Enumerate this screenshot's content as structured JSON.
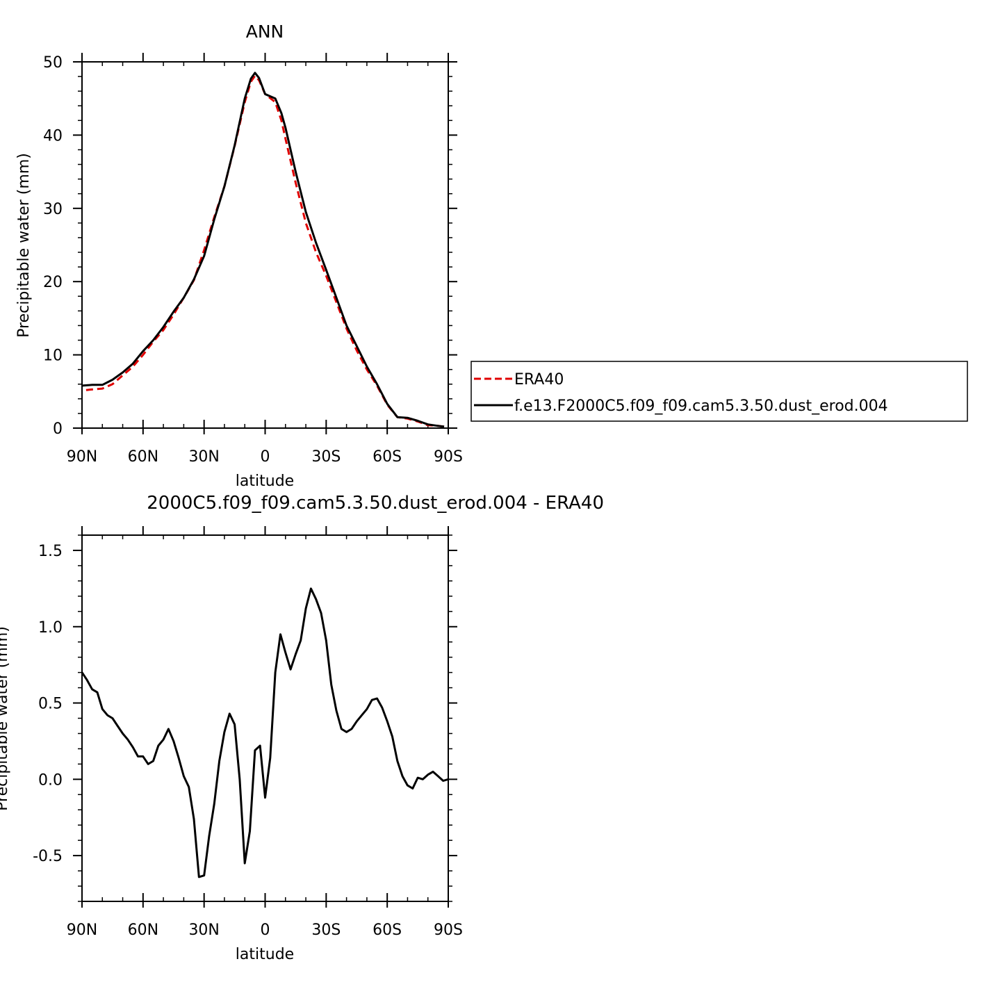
{
  "chart_data": [
    {
      "type": "line",
      "title": "ANN",
      "xlabel": "latitude",
      "ylabel": "Precipitable water (mm)",
      "xlim": [
        90,
        -90
      ],
      "ylim": [
        0,
        50
      ],
      "x_ticks": [
        90,
        60,
        30,
        0,
        -30,
        -60,
        -90
      ],
      "x_tick_labels": [
        "90N",
        "60N",
        "30N",
        "0",
        "30S",
        "60S",
        "90S"
      ],
      "y_ticks": [
        0,
        10,
        20,
        30,
        40,
        50
      ],
      "y_tick_labels": [
        "0",
        "10",
        "20",
        "30",
        "40",
        "50"
      ],
      "legend": {
        "placement": "right",
        "entries": [
          "ERA40",
          "f.e13.F2000C5.f09_f09.cam5.3.50.dust_erod.004"
        ]
      },
      "series": [
        {
          "name": "ERA40",
          "color": "#e00000",
          "dash": "dashed",
          "x": [
            88,
            80,
            75,
            70,
            65,
            60,
            55,
            50,
            45,
            40,
            35,
            30,
            25,
            20,
            15,
            10,
            7,
            5,
            3,
            0,
            -5,
            -8,
            -10,
            -15,
            -20,
            -25,
            -30,
            -35,
            -40,
            -45,
            -50,
            -55,
            -60,
            -65,
            -70,
            -75,
            -80,
            -85,
            -88
          ],
          "values": [
            5.2,
            5.4,
            6.0,
            7.2,
            8.4,
            10.0,
            11.8,
            13.4,
            15.5,
            17.8,
            20.2,
            24.3,
            28.8,
            33.0,
            38.5,
            44.5,
            47.3,
            48.1,
            47.5,
            45.6,
            44.5,
            42.0,
            39.5,
            33.5,
            28.0,
            24.0,
            20.8,
            17.2,
            13.6,
            10.6,
            8.0,
            5.8,
            3.2,
            1.5,
            1.3,
            0.9,
            0.4,
            0.3,
            0.2
          ]
        },
        {
          "name": "f.e13.F2000C5.f09_f09.cam5.3.50.dust_erod.004",
          "color": "#000000",
          "dash": "solid",
          "x": [
            90,
            85,
            80,
            75,
            70,
            65,
            60,
            55,
            50,
            45,
            40,
            35,
            30,
            25,
            20,
            15,
            10,
            7,
            5,
            3,
            0,
            -5,
            -8,
            -10,
            -15,
            -20,
            -25,
            -30,
            -35,
            -40,
            -45,
            -50,
            -55,
            -60,
            -65,
            -70,
            -75,
            -80,
            -85,
            -88
          ],
          "values": [
            5.8,
            5.9,
            5.9,
            6.6,
            7.6,
            8.8,
            10.5,
            12.0,
            13.8,
            15.9,
            17.8,
            20.3,
            23.5,
            28.5,
            33.0,
            38.6,
            45.0,
            47.7,
            48.5,
            47.8,
            45.6,
            45.0,
            43.0,
            41.0,
            35.0,
            29.5,
            25.3,
            21.6,
            17.8,
            14.0,
            11.2,
            8.4,
            6.0,
            3.3,
            1.5,
            1.4,
            1.0,
            0.5,
            0.3,
            0.2
          ]
        }
      ]
    },
    {
      "type": "line",
      "title": "2000C5.f09_f09.cam5.3.50.dust_erod.004 - ERA40",
      "xlabel": "latitude",
      "ylabel": "Precipitable water (mm)",
      "xlim": [
        90,
        -90
      ],
      "ylim": [
        -0.8,
        1.6
      ],
      "x_ticks": [
        90,
        60,
        30,
        0,
        -30,
        -60,
        -90
      ],
      "x_tick_labels": [
        "90N",
        "60N",
        "30N",
        "0",
        "30S",
        "60S",
        "90S"
      ],
      "y_ticks": [
        -0.5,
        0.0,
        0.5,
        1.0,
        1.5
      ],
      "y_tick_labels": [
        "-0.5",
        "0.0",
        "0.5",
        "1.0",
        "1.5"
      ],
      "series": [
        {
          "color": "#000000",
          "dash": "solid",
          "x": [
            90,
            87.5,
            85,
            82.5,
            80,
            77.5,
            75,
            72.5,
            70,
            67.5,
            65,
            62.5,
            60,
            57.5,
            55,
            52.5,
            50,
            47.5,
            45,
            42.5,
            40,
            37.5,
            35,
            32.5,
            30,
            27.5,
            25,
            22.5,
            20,
            17.5,
            15,
            12.5,
            10,
            7.5,
            5,
            2.5,
            0,
            -2.5,
            -5,
            -7.5,
            -10,
            -12.5,
            -15,
            -17.5,
            -20,
            -22.5,
            -25,
            -27.5,
            -30,
            -32.5,
            -35,
            -37.5,
            -40,
            -42.5,
            -45,
            -47.5,
            -50,
            -52.5,
            -55,
            -57.5,
            -60,
            -62.5,
            -65,
            -67.5,
            -70,
            -72.5,
            -75,
            -77.5,
            -80,
            -82.5,
            -85,
            -87.5,
            -90
          ],
          "values": [
            0.7,
            0.65,
            0.59,
            0.57,
            0.46,
            0.42,
            0.4,
            0.35,
            0.3,
            0.26,
            0.21,
            0.15,
            0.15,
            0.1,
            0.12,
            0.22,
            0.26,
            0.33,
            0.25,
            0.14,
            0.02,
            -0.05,
            -0.26,
            -0.64,
            -0.63,
            -0.37,
            -0.16,
            0.12,
            0.31,
            0.43,
            0.36,
            0.0,
            -0.55,
            -0.34,
            0.19,
            0.22,
            -0.12,
            0.14,
            0.7,
            0.95,
            0.83,
            0.72,
            0.82,
            0.91,
            1.12,
            1.25,
            1.18,
            1.09,
            0.91,
            0.62,
            0.45,
            0.33,
            0.31,
            0.33,
            0.38,
            0.42,
            0.46,
            0.52,
            0.53,
            0.47,
            0.38,
            0.28,
            0.12,
            0.02,
            -0.04,
            -0.06,
            0.01,
            0.0,
            0.03,
            0.05,
            0.02,
            -0.01,
            0.0
          ]
        }
      ]
    }
  ]
}
